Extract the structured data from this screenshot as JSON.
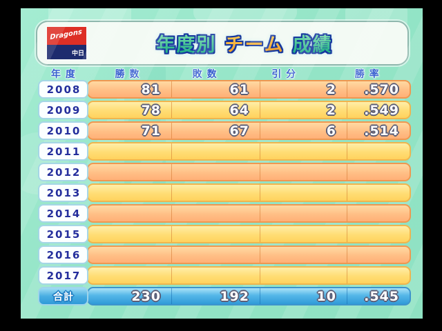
{
  "title": {
    "part1": "年度別",
    "part2": "チーム",
    "part3": "成績"
  },
  "team": {
    "flag_top_label": "Dragons",
    "flag_bottom_label": "中日",
    "flag_red": "#dd2f26",
    "flag_navy": "#1d2b6e"
  },
  "columns": {
    "year": "年度",
    "wins": "勝数",
    "losses": "敗数",
    "draws": "引分",
    "rate": "勝率"
  },
  "chart_data": {
    "type": "table",
    "title": "年度別 チーム 成績",
    "columns": [
      "年度",
      "勝数",
      "敗数",
      "引分",
      "勝率"
    ],
    "rows": [
      [
        "2008",
        81,
        61,
        2,
        0.57
      ],
      [
        "2009",
        78,
        64,
        2,
        0.549
      ],
      [
        "2010",
        71,
        67,
        6,
        0.514
      ],
      [
        "2011",
        null,
        null,
        null,
        null
      ],
      [
        "2012",
        null,
        null,
        null,
        null
      ],
      [
        "2013",
        null,
        null,
        null,
        null
      ],
      [
        "2014",
        null,
        null,
        null,
        null
      ],
      [
        "2015",
        null,
        null,
        null,
        null
      ],
      [
        "2016",
        null,
        null,
        null,
        null
      ],
      [
        "2017",
        null,
        null,
        null,
        null
      ],
      [
        "合計",
        230,
        192,
        10,
        0.545
      ]
    ]
  },
  "rows": [
    {
      "year": "2008",
      "wins": "81",
      "losses": "61",
      "draws": "2",
      "rate": ".570"
    },
    {
      "year": "2009",
      "wins": "78",
      "losses": "64",
      "draws": "2",
      "rate": ".549"
    },
    {
      "year": "2010",
      "wins": "71",
      "losses": "67",
      "draws": "6",
      "rate": ".514"
    },
    {
      "year": "2011",
      "wins": "",
      "losses": "",
      "draws": "",
      "rate": ""
    },
    {
      "year": "2012",
      "wins": "",
      "losses": "",
      "draws": "",
      "rate": ""
    },
    {
      "year": "2013",
      "wins": "",
      "losses": "",
      "draws": "",
      "rate": ""
    },
    {
      "year": "2014",
      "wins": "",
      "losses": "",
      "draws": "",
      "rate": ""
    },
    {
      "year": "2015",
      "wins": "",
      "losses": "",
      "draws": "",
      "rate": ""
    },
    {
      "year": "2016",
      "wins": "",
      "losses": "",
      "draws": "",
      "rate": ""
    },
    {
      "year": "2017",
      "wins": "",
      "losses": "",
      "draws": "",
      "rate": ""
    }
  ],
  "total": {
    "label": "合計",
    "wins": "230",
    "losses": "192",
    "draws": "10",
    "rate": ".545"
  },
  "colors": {
    "background_mint": "#93e4c6",
    "row_orange": "#ffbf86",
    "row_yellow": "#ffdd74",
    "total_blue": "#2f9ad8",
    "year_text": "#242e9c",
    "header_text": "#3a5fd0",
    "title_green": "#27bd8d",
    "title_yellow": "#f5a92e"
  }
}
